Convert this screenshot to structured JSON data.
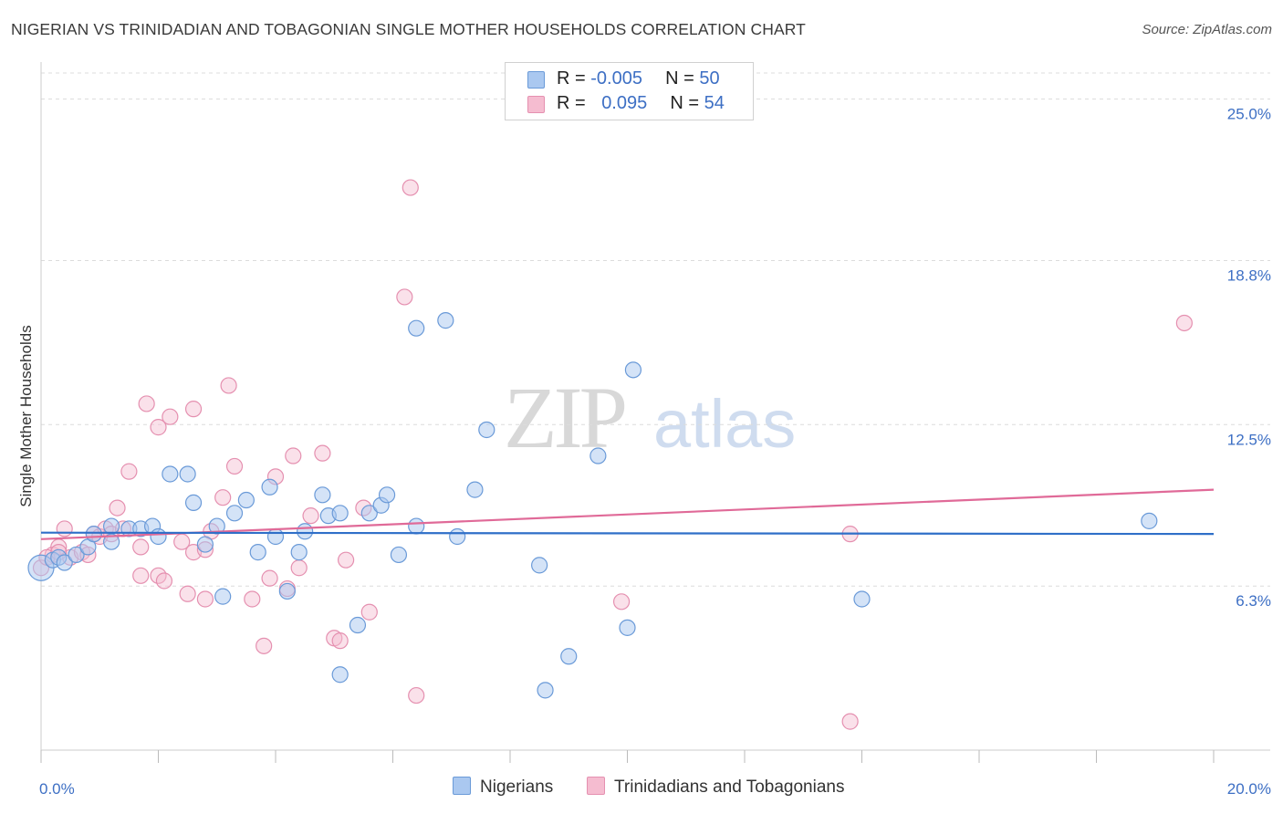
{
  "title": "NIGERIAN VS TRINIDADIAN AND TOBAGONIAN SINGLE MOTHER HOUSEHOLDS CORRELATION CHART",
  "source": "Source: ZipAtlas.com",
  "legend": {
    "rows": [
      {
        "r_label": "R = ",
        "r_value": "-0.005",
        "n_label": "N = ",
        "n_value": "50"
      },
      {
        "r_label": "R = ",
        "r_value": "0.095",
        "n_label": "N = ",
        "n_value": "54"
      }
    ]
  },
  "colors": {
    "nigerians_fill": "#aac8f0",
    "nigerians_stroke": "#6a9ad8",
    "nigerians_line": "#2f6fc8",
    "trini_fill": "#f5bcd0",
    "trini_stroke": "#e590b0",
    "trini_line": "#e06a98",
    "tick": "#3d6fc4"
  },
  "chart_data": {
    "type": "scatter",
    "title": "NIGERIAN VS TRINIDADIAN AND TOBAGONIAN SINGLE MOTHER HOUSEHOLDS CORRELATION CHART",
    "xlabel": "",
    "ylabel": "Single Mother Households",
    "xlim": [
      0.0,
      20.0
    ],
    "ylim": [
      0.0,
      26.0
    ],
    "x_tick_labels": [
      "0.0%",
      "20.0%"
    ],
    "y_ticks": [
      6.3,
      12.5,
      18.8,
      25.0
    ],
    "y_tick_labels": [
      "6.3%",
      "12.5%",
      "18.8%",
      "25.0%"
    ],
    "grid": "horizontal dashed",
    "legend_position": "top-center",
    "series": [
      {
        "name": "Nigerians",
        "trend": {
          "x": [
            0.0,
            20.0
          ],
          "y": [
            8.35,
            8.3
          ]
        },
        "points": [
          [
            0.0,
            7.0
          ],
          [
            0.2,
            7.3
          ],
          [
            0.3,
            7.4
          ],
          [
            0.4,
            7.2
          ],
          [
            0.6,
            7.5
          ],
          [
            0.8,
            7.8
          ],
          [
            0.9,
            8.3
          ],
          [
            1.2,
            8.6
          ],
          [
            1.5,
            8.5
          ],
          [
            1.7,
            8.5
          ],
          [
            1.9,
            8.6
          ],
          [
            2.0,
            8.2
          ],
          [
            1.2,
            8.0
          ],
          [
            2.2,
            10.6
          ],
          [
            2.5,
            10.6
          ],
          [
            2.6,
            9.5
          ],
          [
            2.8,
            7.9
          ],
          [
            3.0,
            8.6
          ],
          [
            3.1,
            5.9
          ],
          [
            3.3,
            9.1
          ],
          [
            3.5,
            9.6
          ],
          [
            3.7,
            7.6
          ],
          [
            3.9,
            10.1
          ],
          [
            4.0,
            8.2
          ],
          [
            4.2,
            6.1
          ],
          [
            4.4,
            7.6
          ],
          [
            4.5,
            8.4
          ],
          [
            4.8,
            9.8
          ],
          [
            4.9,
            9.0
          ],
          [
            5.1,
            9.1
          ],
          [
            5.1,
            2.9
          ],
          [
            5.4,
            4.8
          ],
          [
            5.6,
            9.1
          ],
          [
            5.8,
            9.4
          ],
          [
            5.9,
            9.8
          ],
          [
            6.1,
            7.5
          ],
          [
            6.4,
            8.6
          ],
          [
            6.4,
            16.2
          ],
          [
            6.9,
            16.5
          ],
          [
            7.1,
            8.2
          ],
          [
            7.4,
            10.0
          ],
          [
            7.6,
            12.3
          ],
          [
            8.5,
            7.1
          ],
          [
            8.6,
            2.3
          ],
          [
            9.0,
            3.6
          ],
          [
            9.5,
            11.3
          ],
          [
            10.0,
            4.7
          ],
          [
            10.1,
            14.6
          ],
          [
            14.0,
            5.8
          ],
          [
            18.9,
            8.8
          ]
        ]
      },
      {
        "name": "Trinidadians and Tobagonians",
        "trend": {
          "x": [
            0.0,
            20.0
          ],
          "y": [
            8.1,
            10.0
          ]
        },
        "points": [
          [
            0.0,
            7.0
          ],
          [
            0.2,
            7.5
          ],
          [
            0.3,
            7.8
          ],
          [
            0.4,
            8.5
          ],
          [
            0.5,
            7.4
          ],
          [
            0.7,
            7.6
          ],
          [
            0.8,
            7.5
          ],
          [
            0.9,
            8.3
          ],
          [
            1.0,
            8.2
          ],
          [
            1.1,
            8.5
          ],
          [
            1.2,
            8.3
          ],
          [
            1.3,
            9.3
          ],
          [
            1.4,
            8.5
          ],
          [
            1.5,
            10.7
          ],
          [
            1.7,
            6.7
          ],
          [
            1.7,
            7.8
          ],
          [
            1.8,
            13.3
          ],
          [
            2.0,
            6.7
          ],
          [
            2.0,
            12.4
          ],
          [
            2.1,
            6.5
          ],
          [
            2.2,
            12.8
          ],
          [
            2.4,
            8.0
          ],
          [
            2.5,
            6.0
          ],
          [
            2.6,
            13.1
          ],
          [
            2.6,
            7.6
          ],
          [
            2.8,
            5.8
          ],
          [
            2.8,
            7.7
          ],
          [
            2.9,
            8.4
          ],
          [
            3.1,
            9.7
          ],
          [
            3.2,
            14.0
          ],
          [
            3.3,
            10.9
          ],
          [
            3.6,
            5.8
          ],
          [
            3.8,
            4.0
          ],
          [
            3.9,
            6.6
          ],
          [
            4.0,
            10.5
          ],
          [
            4.2,
            6.2
          ],
          [
            4.3,
            11.3
          ],
          [
            4.4,
            7.0
          ],
          [
            4.6,
            9.0
          ],
          [
            4.8,
            11.4
          ],
          [
            5.0,
            4.3
          ],
          [
            5.1,
            4.2
          ],
          [
            5.2,
            7.3
          ],
          [
            5.5,
            9.3
          ],
          [
            5.6,
            5.3
          ],
          [
            6.2,
            17.4
          ],
          [
            6.3,
            21.6
          ],
          [
            6.4,
            2.1
          ],
          [
            9.9,
            5.7
          ],
          [
            13.8,
            1.1
          ],
          [
            13.8,
            8.3
          ],
          [
            19.5,
            16.4
          ],
          [
            0.1,
            7.4
          ],
          [
            0.3,
            7.6
          ]
        ]
      }
    ]
  },
  "bottom_legend": [
    "Nigerians",
    "Trinidadians and Tobagonians"
  ],
  "watermark": {
    "zip": "ZIP",
    "atlas": "atlas"
  }
}
